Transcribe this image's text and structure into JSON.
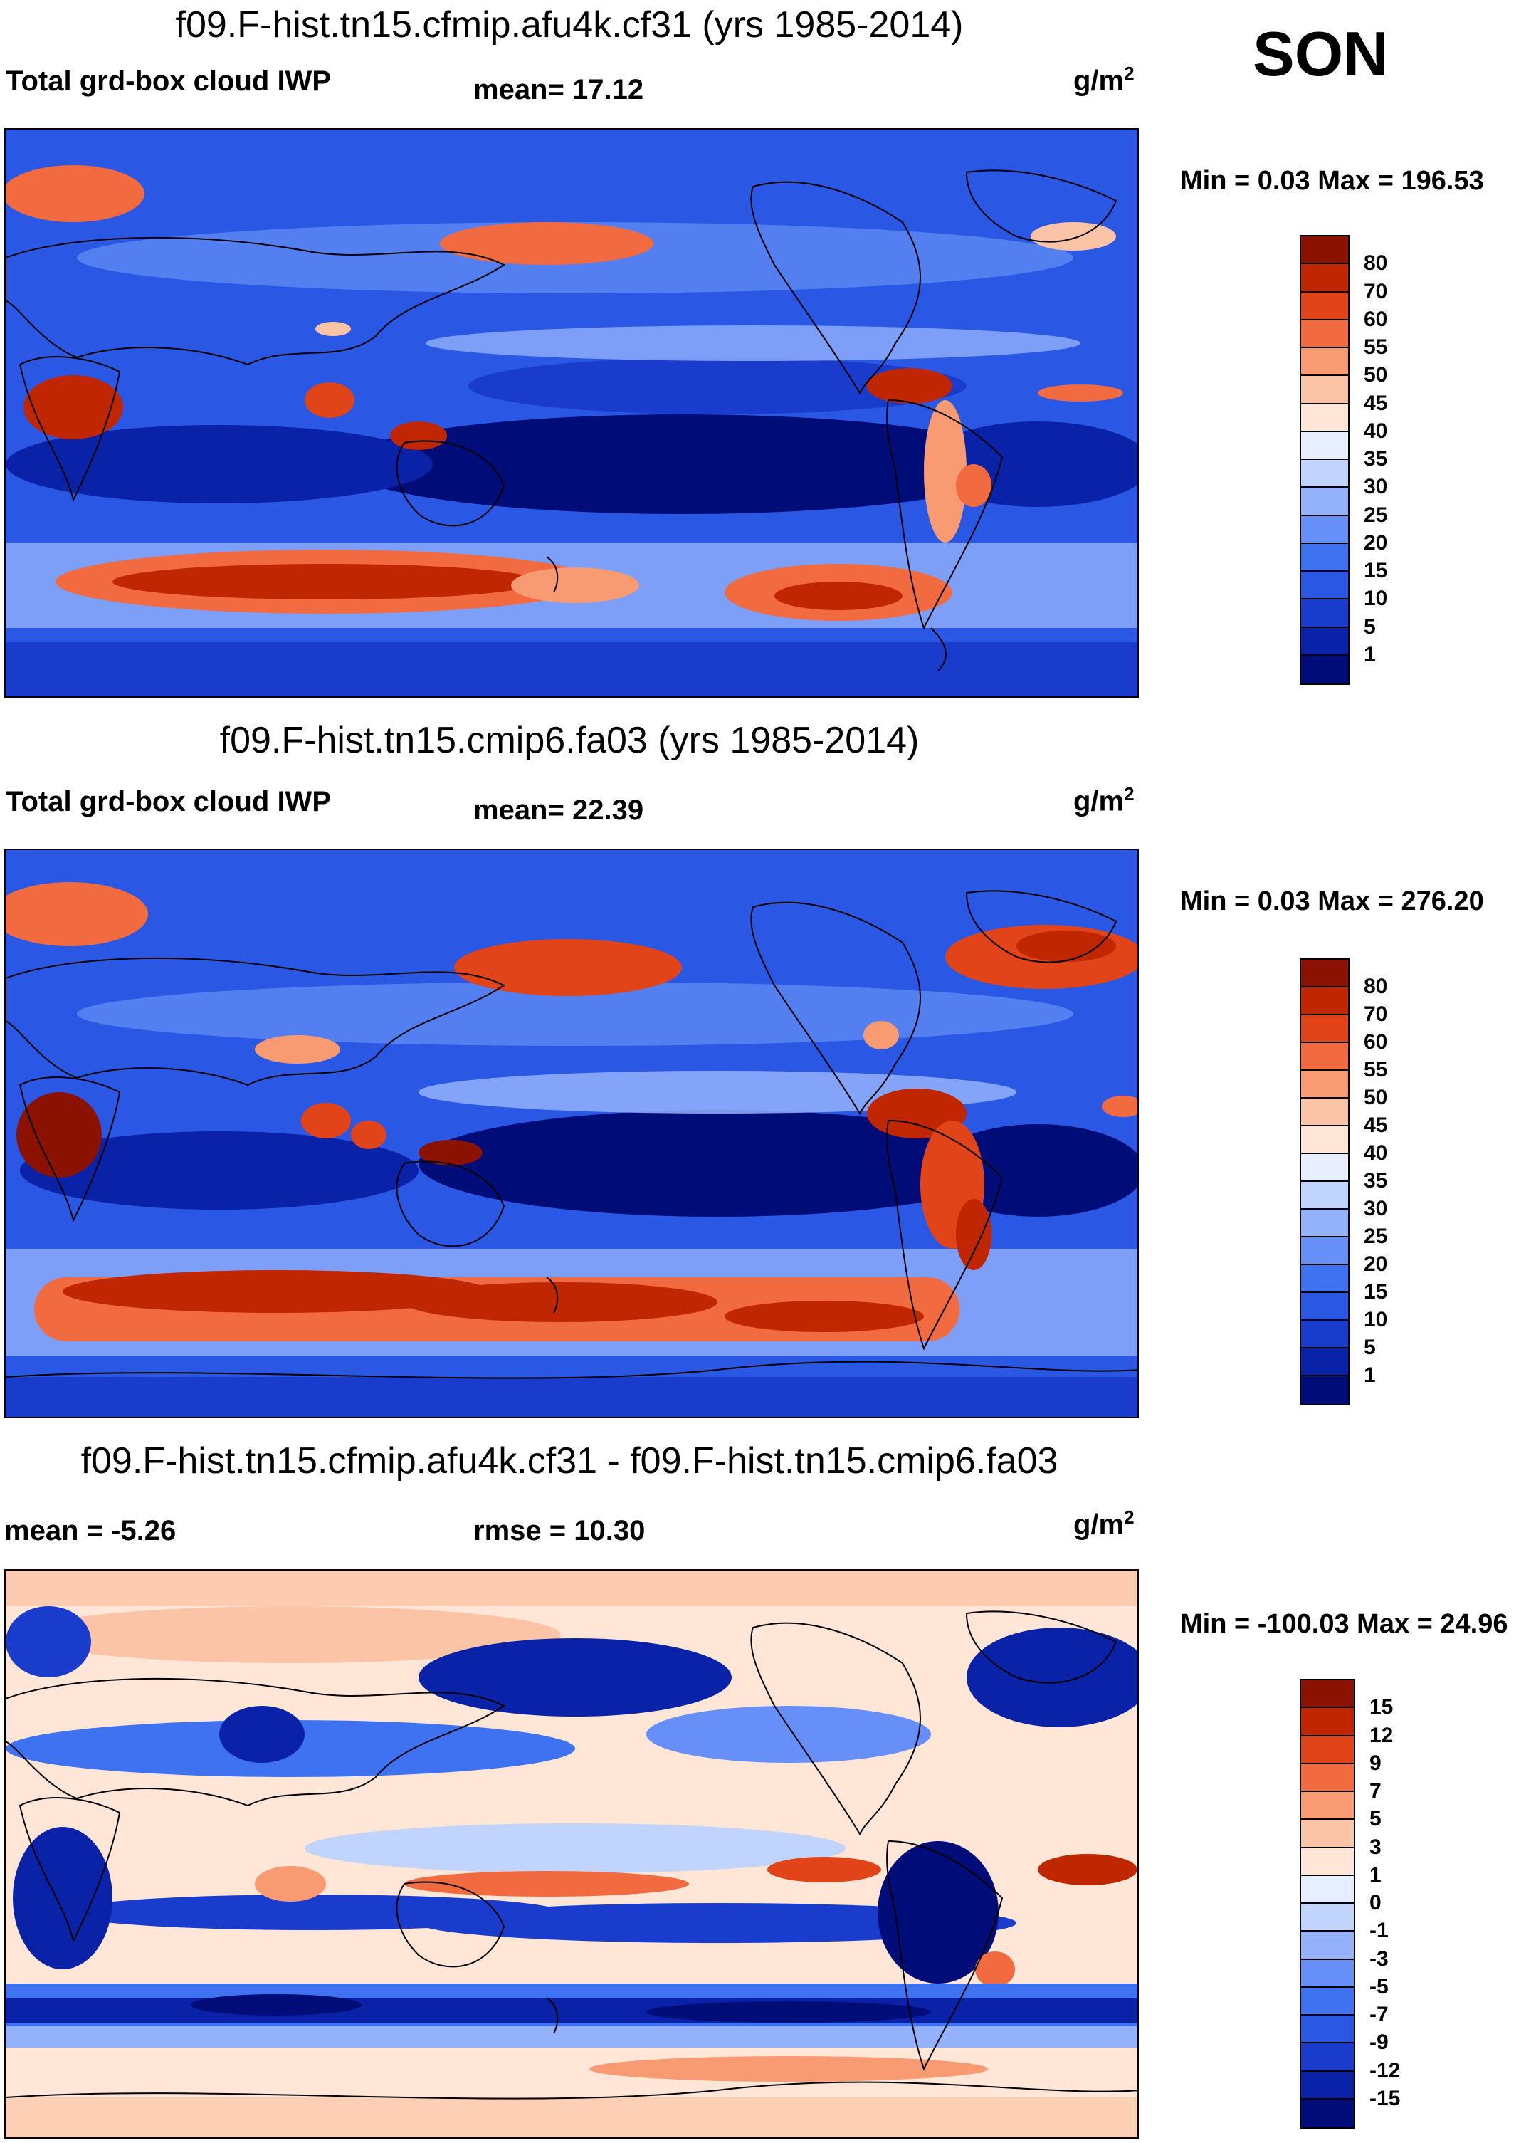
{
  "season": "SON",
  "units_base": "g/m",
  "units_exp": "2",
  "colors": {
    "ocean_base": "#2255dd",
    "deep_blue": "#001a8c",
    "light_blue": "#8fb4ff",
    "orange": "#f05a28",
    "dark_red": "#b01a00",
    "peach": "#fbd0b5"
  },
  "panels": [
    {
      "title": "f09.F-hist.tn15.cfmip.afu4k.cf31 (yrs 1985-2014)",
      "left_label": "Total grd-box cloud IWP",
      "center_label": "mean=  17.12",
      "minmax": "Min =   0.03 Max = 196.53",
      "kind": "abs"
    },
    {
      "title": "f09.F-hist.tn15.cmip6.fa03 (yrs 1985-2014)",
      "left_label": "Total grd-box cloud IWP",
      "center_label": "mean=  22.39",
      "minmax": "Min =   0.03 Max = 276.20",
      "kind": "abs"
    },
    {
      "title": "f09.F-hist.tn15.cfmip.afu4k.cf31 - f09.F-hist.tn15.cmip6.fa03",
      "left_label": "mean =  -5.26",
      "center_label": "rmse =  10.30",
      "minmax": "Min = -100.03 Max =  24.96",
      "kind": "diff"
    }
  ],
  "chart_data": [
    {
      "type": "heatmap",
      "title": "f09.F-hist.tn15.cfmip.afu4k.cf31 (yrs 1985-2014)",
      "variable": "Total grd-box cloud IWP",
      "units": "g/m2",
      "season": "SON",
      "mean": 17.12,
      "min": 0.03,
      "max": 196.53,
      "levels": [
        1,
        5,
        10,
        15,
        20,
        25,
        30,
        35,
        40,
        45,
        50,
        55,
        60,
        70,
        80
      ],
      "colors": [
        "#000c78",
        "#0a22a8",
        "#1a3ccc",
        "#2a58e4",
        "#3f72f0",
        "#6690f7",
        "#93b2fb",
        "#c0d4fd",
        "#e6eeff",
        "#ffe6d6",
        "#fcc4a6",
        "#f89a72",
        "#f26a40",
        "#e04418",
        "#c02600",
        "#8c1200"
      ]
    },
    {
      "type": "heatmap",
      "title": "f09.F-hist.tn15.cmip6.fa03 (yrs 1985-2014)",
      "variable": "Total grd-box cloud IWP",
      "units": "g/m2",
      "season": "SON",
      "mean": 22.39,
      "min": 0.03,
      "max": 276.2,
      "levels": [
        1,
        5,
        10,
        15,
        20,
        25,
        30,
        35,
        40,
        45,
        50,
        55,
        60,
        70,
        80
      ],
      "colors": [
        "#000c78",
        "#0a22a8",
        "#1a3ccc",
        "#2a58e4",
        "#3f72f0",
        "#6690f7",
        "#93b2fb",
        "#c0d4fd",
        "#e6eeff",
        "#ffe6d6",
        "#fcc4a6",
        "#f89a72",
        "#f26a40",
        "#e04418",
        "#c02600",
        "#8c1200"
      ]
    },
    {
      "type": "heatmap",
      "title": "f09.F-hist.tn15.cfmip.afu4k.cf31 - f09.F-hist.tn15.cmip6.fa03",
      "variable": "",
      "units": "g/m2",
      "season": "SON",
      "mean": -5.26,
      "rmse": 10.3,
      "min": -100.03,
      "max": 24.96,
      "levels": [
        -15,
        -12,
        -9,
        -7,
        -5,
        -3,
        -1,
        0,
        1,
        3,
        5,
        7,
        9,
        12,
        15
      ],
      "colors": [
        "#000c78",
        "#0a22a8",
        "#1a3ccc",
        "#2a58e4",
        "#3f72f0",
        "#6690f7",
        "#93b2fb",
        "#c0d4fd",
        "#e6eeff",
        "#ffe6d6",
        "#fcc4a6",
        "#f89a72",
        "#f26a40",
        "#e04418",
        "#c02600",
        "#8c1200"
      ]
    }
  ]
}
